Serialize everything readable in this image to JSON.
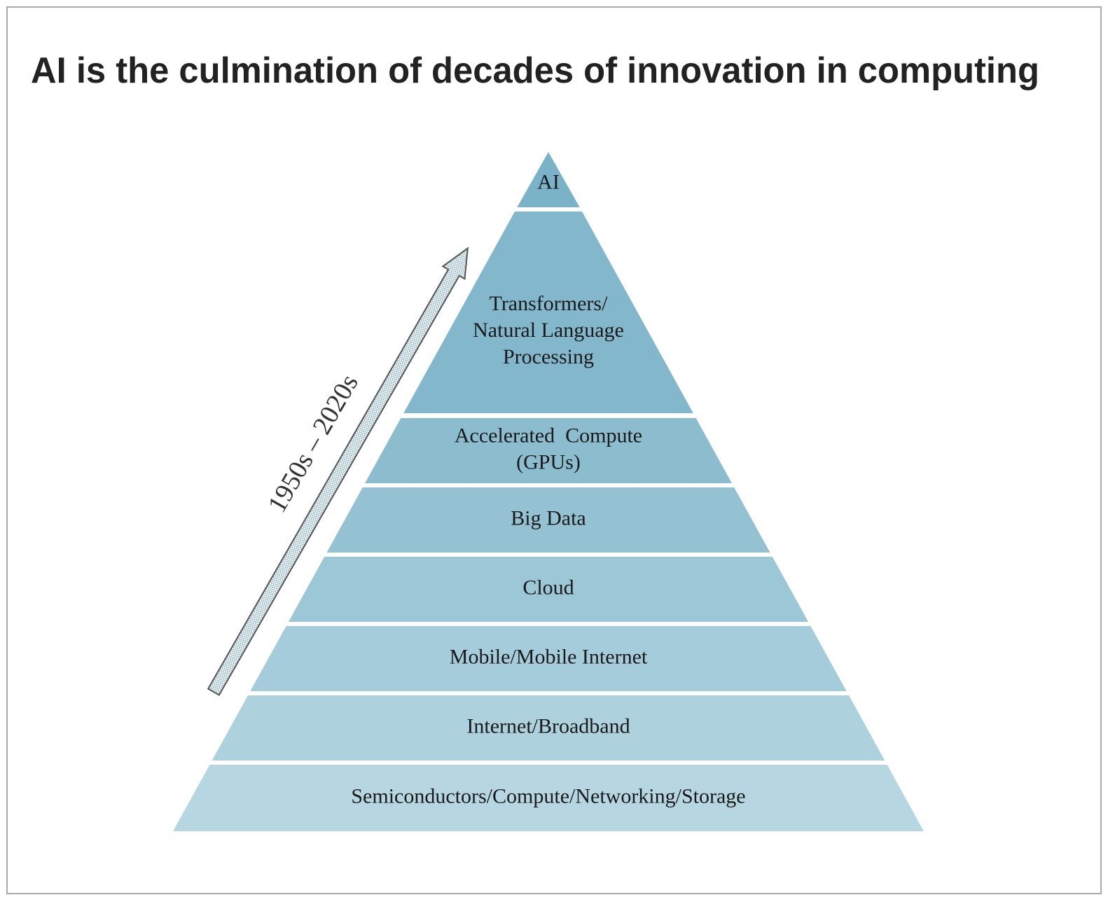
{
  "header": {
    "title": "AI is the culmination of decades of innovation in computing"
  },
  "arrow": {
    "label": "1950s – 2020s"
  },
  "layers": [
    {
      "lines": [
        "AI"
      ]
    },
    {
      "lines": [
        "Transformers/",
        "Natural Language",
        "Processing"
      ]
    },
    {
      "lines": [
        "Accelerated  Compute",
        "(GPUs)"
      ]
    },
    {
      "lines": [
        "Big Data"
      ]
    },
    {
      "lines": [
        "Cloud"
      ]
    },
    {
      "lines": [
        "Mobile/Mobile Internet"
      ]
    },
    {
      "lines": [
        "Internet/Broadband"
      ]
    },
    {
      "lines": [
        "Semiconductors/Compute/Networking/Storage"
      ]
    }
  ]
}
